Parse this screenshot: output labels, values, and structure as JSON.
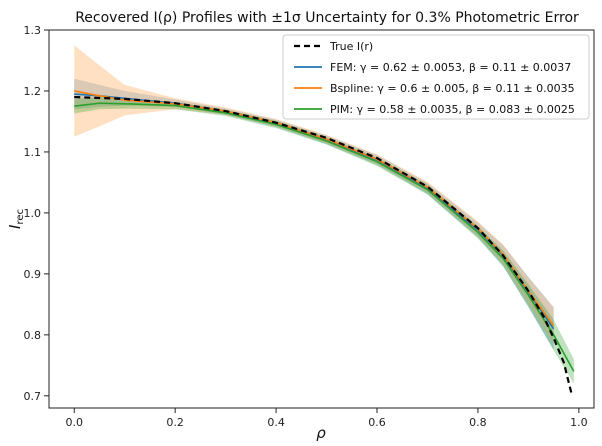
{
  "chart_data": {
    "type": "line",
    "title": "Recovered I(ρ) Profiles with ±1σ Uncertainty for 0.3% Photometric Error",
    "xlabel": "ρ",
    "ylabel": "I_rec",
    "xlim": [
      -0.05,
      1.03
    ],
    "ylim": [
      0.68,
      1.3
    ],
    "x_ticks": [
      "0.0",
      "0.2",
      "0.4",
      "0.6",
      "0.8",
      "1.0"
    ],
    "x_tick_values": [
      0.0,
      0.2,
      0.4,
      0.6,
      0.8,
      1.0
    ],
    "y_ticks": [
      "0.7",
      "0.8",
      "0.9",
      "1.0",
      "1.1",
      "1.2",
      "1.3"
    ],
    "y_tick_values": [
      0.7,
      0.8,
      0.9,
      1.0,
      1.1,
      1.2,
      1.3
    ],
    "legend_position": "top-right",
    "series": [
      {
        "name": "True I(r)",
        "legend": "True I(r)",
        "color": "#000000",
        "style": "dashed",
        "x": [
          0.0,
          0.1,
          0.2,
          0.3,
          0.4,
          0.5,
          0.6,
          0.7,
          0.8,
          0.85,
          0.9,
          0.93,
          0.95,
          0.97,
          0.985
        ],
        "y": [
          1.19,
          1.187,
          1.18,
          1.167,
          1.148,
          1.123,
          1.09,
          1.043,
          0.975,
          0.93,
          0.872,
          0.83,
          0.795,
          0.755,
          0.705
        ]
      },
      {
        "name": "FEM",
        "legend": "FEM: γ = 0.62 ± 0.0053, β = 0.11 ± 0.0037",
        "color": "#1f77b4",
        "band_color": "#1f77b4",
        "x": [
          0.0,
          0.05,
          0.1,
          0.2,
          0.3,
          0.4,
          0.5,
          0.6,
          0.7,
          0.8,
          0.85,
          0.9,
          0.95
        ],
        "y": [
          1.195,
          1.192,
          1.188,
          1.18,
          1.166,
          1.147,
          1.12,
          1.087,
          1.04,
          0.972,
          0.93,
          0.87,
          0.81
        ],
        "err": [
          0.025,
          0.018,
          0.012,
          0.006,
          0.005,
          0.006,
          0.007,
          0.008,
          0.009,
          0.012,
          0.017,
          0.025,
          0.035
        ]
      },
      {
        "name": "Bspline",
        "legend": "Bspline: γ = 0.6 ± 0.005, β = 0.11 ± 0.0035",
        "color": "#ff7f0e",
        "band_color": "#ffbb78",
        "x": [
          0.0,
          0.05,
          0.1,
          0.2,
          0.3,
          0.4,
          0.5,
          0.6,
          0.7,
          0.8,
          0.85,
          0.9,
          0.95
        ],
        "y": [
          1.2,
          1.192,
          1.185,
          1.179,
          1.167,
          1.148,
          1.121,
          1.088,
          1.042,
          0.974,
          0.932,
          0.872,
          0.815
        ],
        "err": [
          0.075,
          0.05,
          0.025,
          0.009,
          0.006,
          0.006,
          0.007,
          0.008,
          0.009,
          0.012,
          0.016,
          0.022,
          0.03
        ]
      },
      {
        "name": "PIM",
        "legend": "PIM: γ = 0.58 ± 0.0035, β = 0.083 ± 0.0025",
        "color": "#2ca02c",
        "band_color": "#2ca02c",
        "x": [
          0.0,
          0.05,
          0.1,
          0.2,
          0.3,
          0.4,
          0.5,
          0.6,
          0.7,
          0.8,
          0.85,
          0.9,
          0.95,
          0.99
        ],
        "y": [
          1.175,
          1.18,
          1.179,
          1.176,
          1.164,
          1.145,
          1.118,
          1.084,
          1.038,
          0.968,
          0.925,
          0.865,
          0.8,
          0.74
        ],
        "err": [
          0.012,
          0.01,
          0.008,
          0.006,
          0.005,
          0.006,
          0.006,
          0.007,
          0.008,
          0.01,
          0.013,
          0.018,
          0.025,
          0.02
        ]
      }
    ]
  }
}
